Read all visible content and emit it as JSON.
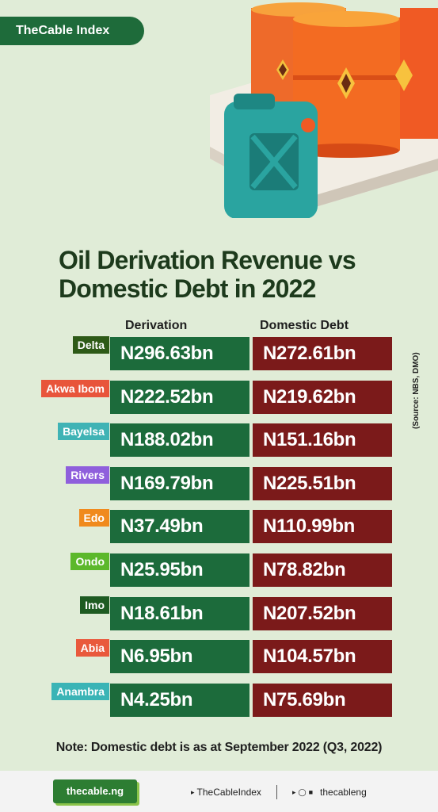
{
  "brand": "TheCable Index",
  "chart_data": {
    "type": "table",
    "title": "Oil Derivation Revenue vs Domestic Debt in 2022",
    "columns": [
      "Derivation",
      "Domestic Debt"
    ],
    "source": "(Source: NBS, DMO)",
    "rows": [
      {
        "state": "Delta",
        "derivation": "N296.63bn",
        "debt": "N272.61bn",
        "color": "#2e5a17"
      },
      {
        "state": "Akwa Ibom",
        "derivation": "N222.52bn",
        "debt": "N219.62bn",
        "color": "#e8553b"
      },
      {
        "state": "Bayelsa",
        "derivation": "N188.02bn",
        "debt": "N151.16bn",
        "color": "#3fb3b5"
      },
      {
        "state": "Rivers",
        "derivation": "N169.79bn",
        "debt": "N225.51bn",
        "color": "#8f5fdc"
      },
      {
        "state": "Edo",
        "derivation": "N37.49bn",
        "debt": "N110.99bn",
        "color": "#f08a1d"
      },
      {
        "state": "Ondo",
        "derivation": "N25.95bn",
        "debt": "N78.82bn",
        "color": "#5cb82b"
      },
      {
        "state": "Imo",
        "derivation": "N18.61bn",
        "debt": "N207.52bn",
        "color": "#1e5b22"
      },
      {
        "state": "Abia",
        "derivation": "N6.95bn",
        "debt": "N104.57bn",
        "color": "#e9593c"
      },
      {
        "state": "Anambra",
        "derivation": "N4.25bn",
        "debt": "N75.69bn",
        "color": "#3ab4b6"
      }
    ]
  },
  "note": "Note: Domestic debt is as at September 2022 (Q3, 2022)",
  "footer": {
    "logo": "thecable.ng",
    "twitter": "TheCableIndex",
    "social": "thecableng",
    "icons": [
      "twitter-icon",
      "instagram-icon",
      "facebook-icon"
    ]
  }
}
